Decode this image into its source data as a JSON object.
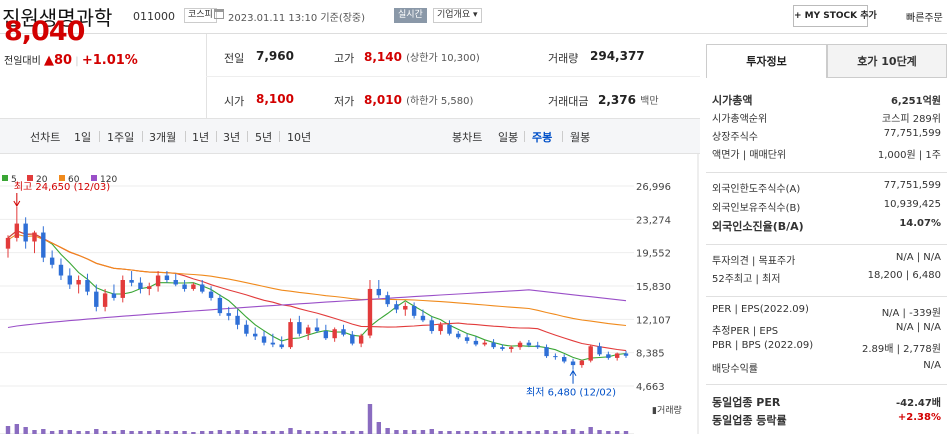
{
  "header": {
    "stock_name": "진원생명과학",
    "stock_code": "011000",
    "market_badge": "코스피",
    "datetime": "2023.01.11 13:10 기준(장중)",
    "realtime_badge": "실시간",
    "overview_dropdown": "기업개요 ▾",
    "mystock_button": "+ MY STOCK 추가",
    "quick_order": "빠른주문"
  },
  "quote": {
    "price": "8,040",
    "change_label": "전일대비",
    "change_arrow": "▲",
    "change_value": "80",
    "change_pct": "+1.01%",
    "prev_label": "전일",
    "prev_value": "7,960",
    "high_label": "고가",
    "high_value": "8,140",
    "high_limit": "(상한가 10,300)",
    "volume_label": "거래량",
    "volume_value": "294,377",
    "open_label": "시가",
    "open_value": "8,100",
    "low_label": "저가",
    "low_value": "8,010",
    "low_limit": "(하한가 5,580)",
    "amount_label": "거래대금",
    "amount_value": "2,376",
    "amount_unit": "백만"
  },
  "periods": {
    "line_chart": "선차트",
    "p1": "1일",
    "p2": "1주일",
    "p3": "3개월",
    "p4": "1년",
    "p5": "3년",
    "p6": "5년",
    "p7": "10년",
    "candle": "봉차트",
    "daily": "일봉",
    "weekly": "주봉",
    "monthly": "월봉"
  },
  "chart_data": {
    "type": "candlestick",
    "legend": [
      {
        "name": "5",
        "color": "#3aa635"
      },
      {
        "name": "20",
        "color": "#e23b3b"
      },
      {
        "name": "60",
        "color": "#f08a1c"
      },
      {
        "name": "120",
        "color": "#9a4fc8"
      }
    ],
    "y_ticks": [
      "26,996",
      "23,274",
      "19,552",
      "15,830",
      "12,107",
      "8,385",
      "4,663"
    ],
    "ylim": [
      4663,
      26996
    ],
    "max_annotation": "최고 24,650 (12/03)",
    "min_annotation": "최저 6,480 (12/02)",
    "volume_label": "거래량",
    "candles": [
      [
        20000,
        21500,
        19000,
        21200
      ],
      [
        21200,
        24650,
        20800,
        22800
      ],
      [
        22800,
        23500,
        20000,
        20800
      ],
      [
        20800,
        22000,
        19500,
        21800
      ],
      [
        21800,
        22500,
        18500,
        19000
      ],
      [
        19000,
        19800,
        17800,
        18200
      ],
      [
        18200,
        18900,
        16500,
        17000
      ],
      [
        17000,
        17800,
        15500,
        16000
      ],
      [
        16000,
        17000,
        15000,
        16500
      ],
      [
        16500,
        17200,
        14800,
        15200
      ],
      [
        15200,
        16000,
        13000,
        13500
      ],
      [
        13500,
        15500,
        13000,
        15000
      ],
      [
        15000,
        16000,
        14200,
        14500
      ],
      [
        14500,
        17000,
        14000,
        16500
      ],
      [
        16500,
        17500,
        15800,
        16200
      ],
      [
        16200,
        16800,
        15000,
        15500
      ],
      [
        15500,
        16200,
        14800,
        15800
      ],
      [
        15800,
        17500,
        15200,
        17000
      ],
      [
        17000,
        17500,
        16200,
        16500
      ],
      [
        16500,
        17200,
        15800,
        16000
      ],
      [
        16000,
        16500,
        15200,
        15500
      ],
      [
        15500,
        16200,
        15300,
        16000
      ],
      [
        16000,
        16500,
        15000,
        15200
      ],
      [
        15200,
        15800,
        14200,
        14500
      ],
      [
        14500,
        14900,
        12500,
        12800
      ],
      [
        12800,
        13500,
        12000,
        12500
      ],
      [
        12500,
        13200,
        11000,
        11500
      ],
      [
        11500,
        12000,
        10200,
        10500
      ],
      [
        10500,
        11200,
        9800,
        10200
      ],
      [
        10200,
        10800,
        9200,
        9500
      ],
      [
        9500,
        10500,
        9000,
        9300
      ],
      [
        9300,
        10200,
        8800,
        9000
      ],
      [
        9000,
        12200,
        8800,
        11800
      ],
      [
        11800,
        12500,
        10200,
        10500
      ],
      [
        10500,
        11500,
        9800,
        11200
      ],
      [
        11200,
        12200,
        10600,
        10800
      ],
      [
        10800,
        11500,
        9800,
        10000
      ],
      [
        10000,
        11200,
        9600,
        11000
      ],
      [
        11000,
        11500,
        10200,
        10400
      ],
      [
        10400,
        10800,
        9200,
        9400
      ],
      [
        9400,
        10500,
        9000,
        10300
      ],
      [
        10300,
        16500,
        10000,
        15500
      ],
      [
        15500,
        16500,
        14500,
        14800
      ],
      [
        14800,
        15200,
        13500,
        13800
      ],
      [
        13800,
        14200,
        12800,
        13200
      ],
      [
        13200,
        14000,
        12500,
        13600
      ],
      [
        13600,
        14000,
        12200,
        12500
      ],
      [
        12500,
        13200,
        11800,
        12000
      ],
      [
        12000,
        12400,
        10500,
        10800
      ],
      [
        10800,
        11800,
        10400,
        11500
      ],
      [
        11500,
        12000,
        10300,
        10500
      ],
      [
        10500,
        10800,
        9900,
        10100
      ],
      [
        10100,
        10500,
        9400,
        9700
      ],
      [
        9700,
        10200,
        9100,
        9300
      ],
      [
        9300,
        9800,
        9100,
        9500
      ],
      [
        9500,
        9900,
        8800,
        9000
      ],
      [
        9000,
        9300,
        8600,
        8800
      ],
      [
        8800,
        9200,
        8400,
        9000
      ],
      [
        9000,
        9700,
        8700,
        9500
      ],
      [
        9500,
        9800,
        9000,
        9200
      ],
      [
        9200,
        9600,
        8800,
        9000
      ],
      [
        9000,
        9300,
        7800,
        8000
      ],
      [
        8000,
        8300,
        7600,
        7900
      ],
      [
        7900,
        8200,
        7200,
        7400
      ],
      [
        7400,
        7700,
        6480,
        7000
      ],
      [
        7000,
        7600,
        6700,
        7500
      ],
      [
        7500,
        9300,
        7300,
        9100
      ],
      [
        9100,
        9500,
        8000,
        8200
      ],
      [
        8200,
        8500,
        7600,
        7800
      ],
      [
        7800,
        8400,
        7500,
        8300
      ],
      [
        8300,
        8600,
        7800,
        8040
      ]
    ],
    "volumes": [
      8,
      10,
      7,
      4,
      5,
      3,
      4,
      4,
      3,
      3,
      5,
      3,
      3,
      4,
      3,
      3,
      3,
      4,
      3,
      3,
      3,
      2,
      3,
      3,
      4,
      3,
      4,
      4,
      3,
      3,
      3,
      3,
      6,
      4,
      3,
      3,
      3,
      3,
      3,
      3,
      3,
      30,
      12,
      6,
      4,
      4,
      4,
      4,
      5,
      3,
      3,
      3,
      3,
      3,
      3,
      3,
      3,
      3,
      3,
      3,
      3,
      4,
      3,
      4,
      5,
      3,
      7,
      4,
      3,
      3,
      3
    ]
  },
  "invest": {
    "tab1": "투자정보",
    "tab2": "호가 10단계",
    "rows": [
      {
        "l": "시가총액",
        "v": "6,251억원"
      },
      {
        "l": "시가총액순위",
        "v": "코스피 289위"
      },
      {
        "l": "상장주식수",
        "v": "77,751,599"
      },
      {
        "l": "액면가 | 매매단위",
        "v": "1,000원  |  1주"
      },
      {
        "l": "외국인한도주식수(A)",
        "v": "77,751,599"
      },
      {
        "l": "외국인보유주식수(B)",
        "v": "10,939,425"
      },
      {
        "l": "외국인소진율(B/A)",
        "v": "14.07%"
      },
      {
        "l": "투자의견 | 목표주가",
        "v": "N/A  |  N/A"
      },
      {
        "l": "52주최고 | 최저",
        "v": "18,200  |  6,480"
      },
      {
        "l": "PER | EPS(2022.09)",
        "v": "N/A  |  -339원"
      },
      {
        "l": "추정PER | EPS",
        "v": "N/A  |  N/A"
      },
      {
        "l": "PBR | BPS (2022.09)",
        "v": "2.89배  |  2,778원"
      },
      {
        "l": "배당수익률",
        "v": "N/A"
      },
      {
        "l": "동일업종 PER",
        "v": "-42.47배"
      },
      {
        "l": "동일업종 등락률",
        "v": "+2.38%"
      }
    ]
  }
}
